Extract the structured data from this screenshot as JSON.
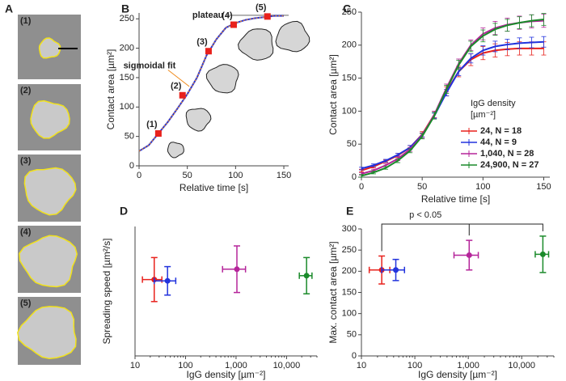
{
  "panel_a": {
    "letter": "A",
    "labels": [
      "(1)",
      "(2)",
      "(3)",
      "(4)",
      "(5)"
    ]
  },
  "chart_data": [
    {
      "type": "line",
      "panel": "B",
      "xlabel": "Relative time [s]",
      "ylabel": "Contact area [µm²]",
      "xlim": [
        0,
        155
      ],
      "ylim": [
        0,
        260
      ],
      "xticks": [
        0,
        50,
        100,
        150
      ],
      "yticks": [
        0,
        50,
        100,
        150,
        200,
        250
      ],
      "x": [
        0,
        10,
        20,
        30,
        40,
        50,
        60,
        70,
        80,
        90,
        100,
        110,
        120,
        130,
        140,
        150
      ],
      "series": [
        {
          "color": "#2233dd",
          "fit_color": "#f08a1c",
          "values": [
            25,
            35,
            55,
            75,
            98,
            122,
            150,
            188,
            215,
            235,
            243,
            248,
            251,
            253,
            255,
            255
          ]
        }
      ],
      "markers": {
        "color": "#e8211c",
        "x": [
          20,
          45,
          72,
          98,
          133
        ],
        "values": [
          55,
          120,
          195,
          240,
          254
        ],
        "labels": [
          "(1)",
          "(2)",
          "(3)",
          "(4)",
          "(5)"
        ]
      },
      "plateau": {
        "label": "plateau",
        "value": 256
      },
      "fit_label": "sigmoidal fit"
    },
    {
      "type": "line",
      "panel": "C",
      "xlabel": "Relative time [s]",
      "ylabel": "Contact area [µm²]",
      "xlim": [
        0,
        155
      ],
      "ylim": [
        0,
        250
      ],
      "xticks": [
        0,
        50,
        100,
        150
      ],
      "yticks": [
        0,
        50,
        100,
        150,
        200,
        250
      ],
      "x": [
        0,
        10,
        20,
        30,
        40,
        50,
        60,
        70,
        80,
        90,
        100,
        110,
        120,
        130,
        140,
        150
      ],
      "legend_title": [
        "IgG density",
        "[µm⁻²]"
      ],
      "series": [
        {
          "name": "24, N = 18",
          "color": "#e8211c",
          "values": [
            10,
            16,
            24,
            33,
            45,
            65,
            95,
            130,
            160,
            178,
            188,
            192,
            194,
            195,
            195,
            195
          ],
          "errors": [
            2,
            2,
            2,
            3,
            3,
            4,
            5,
            7,
            8,
            9,
            10,
            10,
            10,
            10,
            10,
            10
          ]
        },
        {
          "name": "44, N = 9",
          "color": "#2233dd",
          "values": [
            13,
            18,
            25,
            34,
            45,
            64,
            93,
            128,
            160,
            180,
            192,
            198,
            201,
            203,
            204,
            205
          ],
          "errors": [
            2,
            2,
            2,
            2,
            3,
            3,
            4,
            5,
            6,
            7,
            7,
            8,
            8,
            8,
            8,
            8
          ]
        },
        {
          "name": "1,040, N = 28",
          "color": "#b5259a",
          "values": [
            5,
            10,
            18,
            28,
            42,
            63,
            95,
            135,
            172,
            200,
            217,
            226,
            231,
            234,
            236,
            237
          ],
          "errors": [
            2,
            2,
            2,
            3,
            3,
            4,
            5,
            6,
            7,
            8,
            9,
            10,
            10,
            10,
            10,
            10
          ]
        },
        {
          "name": "24,900, N = 27",
          "color": "#1a8a2a",
          "values": [
            2,
            7,
            14,
            25,
            40,
            62,
            93,
            133,
            170,
            198,
            214,
            224,
            230,
            234,
            237,
            239
          ],
          "errors": [
            2,
            2,
            2,
            3,
            3,
            4,
            5,
            6,
            7,
            8,
            9,
            9,
            9,
            9,
            9,
            9
          ]
        }
      ]
    },
    {
      "type": "scatter",
      "panel": "D",
      "log_x": true,
      "xlabel": "IgG density [µm⁻²]",
      "ylabel": "Spreading speed [µm²/s]",
      "xlim": [
        10,
        40000
      ],
      "ylim": [
        0,
        5
      ],
      "xticks": [
        10,
        100,
        {
          "value": 1000,
          "label": "1,000"
        },
        {
          "value": 10000,
          "label": "10,000"
        }
      ],
      "x": [
        24,
        44,
        1040,
        24900
      ],
      "values": [
        2.95,
        2.9,
        3.35,
        3.1
      ],
      "errors": [
        0.85,
        0.55,
        0.9,
        0.7
      ],
      "xerr": [
        10,
        20,
        500,
        7000
      ],
      "colors": [
        "#e8211c",
        "#2233dd",
        "#b5259a",
        "#1a8a2a"
      ]
    },
    {
      "type": "scatter",
      "panel": "E",
      "log_x": true,
      "xlabel": "IgG density [µm⁻²]",
      "ylabel": "Max. contact area [µm²]",
      "xlim": [
        10,
        40000
      ],
      "ylim": [
        0,
        300
      ],
      "xticks": [
        10,
        100,
        {
          "value": 1000,
          "label": "1,000"
        },
        {
          "value": 10000,
          "label": "10,000"
        }
      ],
      "yticks": [
        0,
        50,
        100,
        150,
        200,
        250,
        300
      ],
      "x": [
        24,
        44,
        1040,
        24900
      ],
      "values": [
        203,
        203,
        238,
        240
      ],
      "errors": [
        33,
        25,
        35,
        43
      ],
      "xerr": [
        10,
        20,
        500,
        7000
      ],
      "colors": [
        "#e8211c",
        "#2233dd",
        "#b5259a",
        "#1a8a2a"
      ],
      "annotation": "p < 0.05"
    }
  ]
}
